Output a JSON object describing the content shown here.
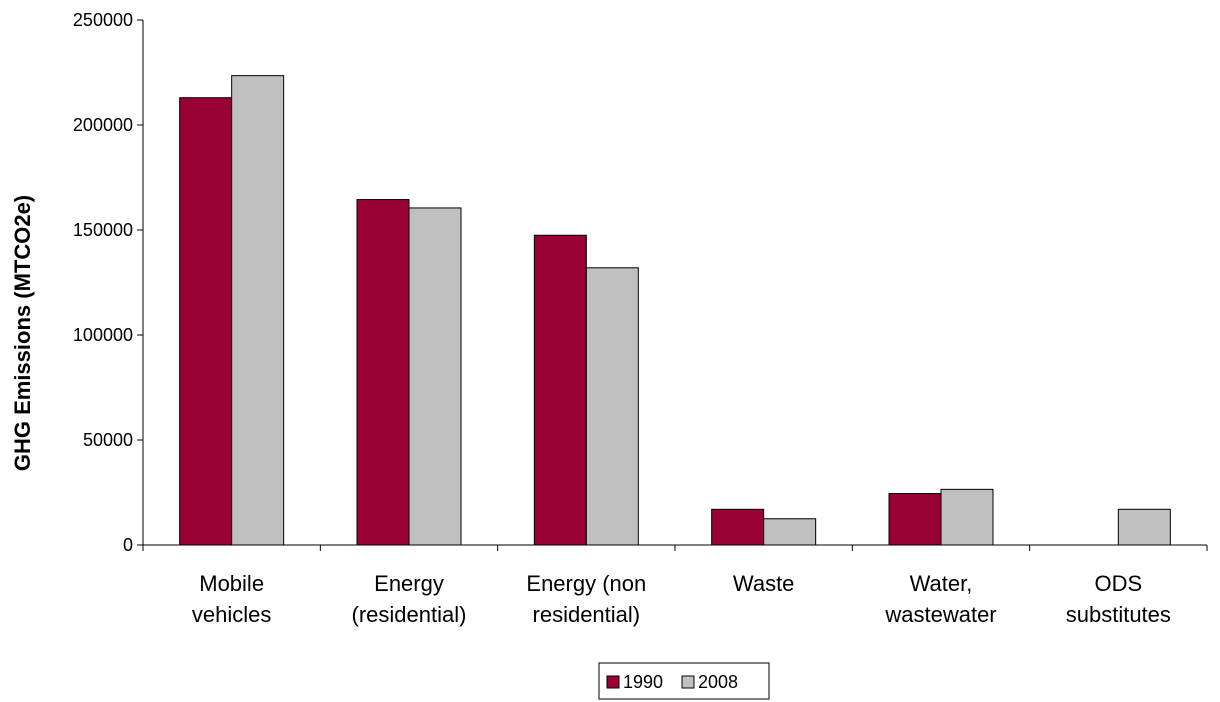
{
  "chart_data": {
    "type": "bar",
    "title": "",
    "xlabel": "",
    "ylabel": "GHG Emissions (MTCO2e)",
    "ylim": [
      0,
      250000
    ],
    "yticks": [
      0,
      50000,
      100000,
      150000,
      200000,
      250000
    ],
    "yticks_labels": [
      "0",
      "50000",
      "100000",
      "150000",
      "200000",
      "250000"
    ],
    "categories": [
      [
        "Mobile",
        "vehicles"
      ],
      [
        "Energy",
        "(residential)"
      ],
      [
        "Energy (non",
        "residential)"
      ],
      [
        "Waste"
      ],
      [
        "Water,",
        "wastewater"
      ],
      [
        "ODS",
        "substitutes"
      ]
    ],
    "series": [
      {
        "name": "1990",
        "color": "#990033",
        "values": [
          213000,
          164500,
          147500,
          17000,
          24500,
          0
        ]
      },
      {
        "name": "2008",
        "color": "#c0c0c0",
        "values": [
          223500,
          160500,
          132000,
          12500,
          26500,
          17000
        ]
      }
    ],
    "legend_position": "bottom-center",
    "grid": false
  }
}
